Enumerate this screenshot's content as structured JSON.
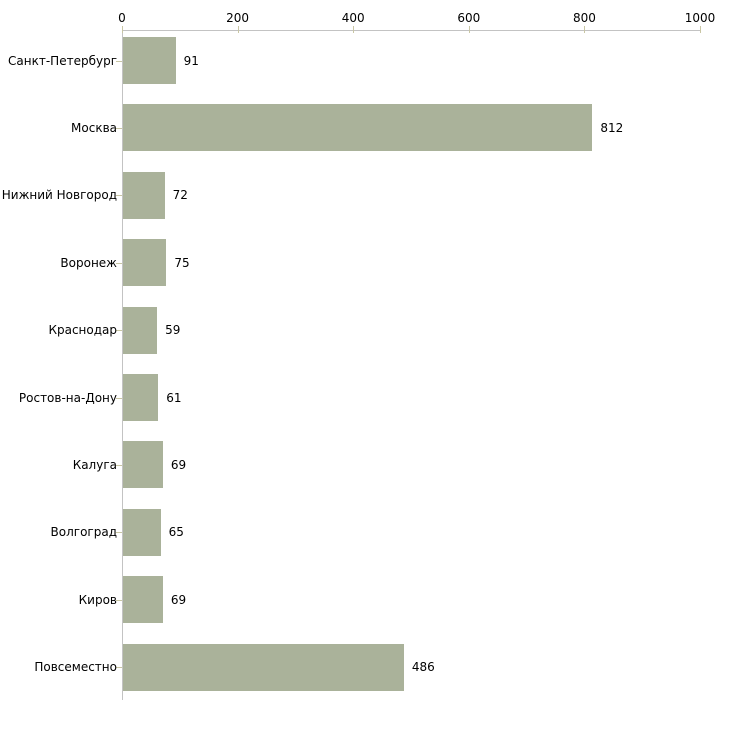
{
  "chart_data": {
    "type": "bar",
    "orientation": "horizontal",
    "title": "",
    "xlabel": "",
    "ylabel": "",
    "categories": [
      "Санкт-Петербург",
      "Москва",
      "Нижний Новгород",
      "Воронеж",
      "Краснодар",
      "Ростов-на-Дону",
      "Калуга",
      "Волгоград",
      "Киров",
      "Повсеместно"
    ],
    "values": [
      91,
      812,
      72,
      75,
      59,
      61,
      69,
      65,
      69,
      486
    ],
    "value_labels": [
      "91",
      "812",
      "72",
      "75",
      "59",
      "61",
      "69",
      "65",
      "69",
      "486"
    ],
    "xlim": [
      0,
      1000
    ],
    "x_ticks": [
      0,
      200,
      400,
      600,
      800,
      1000
    ],
    "x_tick_labels": [
      "0",
      "200",
      "400",
      "600",
      "800",
      "1000"
    ],
    "grid": false,
    "legend": "none",
    "axis_position": "top-left",
    "colors": {
      "bar_fill": "#aab29a",
      "axis_line": "#c3c3c3",
      "tick_mark": "#c9c6a4",
      "text": "#000000",
      "background": "#ffffff"
    }
  }
}
